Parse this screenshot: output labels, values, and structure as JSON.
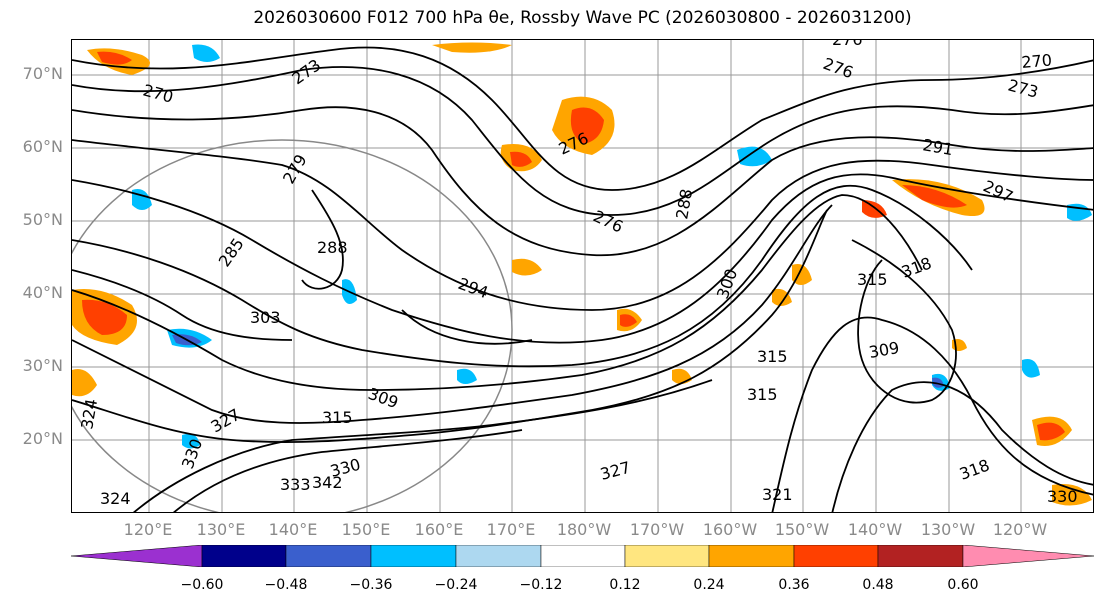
{
  "title": "2026030600 F012 700 hPa θe, Rossby Wave PC (2026030800 - 2026031200)",
  "lat_labels": [
    "70°N",
    "60°N",
    "50°N",
    "40°N",
    "30°N",
    "20°N"
  ],
  "lon_labels": [
    "120°E",
    "130°E",
    "140°E",
    "150°E",
    "160°E",
    "170°E",
    "180°W",
    "170°W",
    "160°W",
    "150°W",
    "140°W",
    "130°W",
    "120°W"
  ],
  "contour_labels": [
    "270",
    "273",
    "276",
    "279",
    "285",
    "288",
    "291",
    "294",
    "297",
    "300",
    "303",
    "309",
    "315",
    "318",
    "321",
    "324",
    "327",
    "330",
    "333",
    "342"
  ],
  "colorbar": {
    "ticks": [
      "−0.60",
      "−0.48",
      "−0.36",
      "−0.24",
      "−0.12",
      "0.12",
      "0.24",
      "0.36",
      "0.48",
      "0.60"
    ],
    "colors": [
      "#9b30d0",
      "#00008b",
      "#3a5fcd",
      "#00bfff",
      "#add8f0",
      "#ffffff",
      "#ffe680",
      "#ffa500",
      "#ff4000",
      "#b22222",
      "#ff8cb0"
    ]
  },
  "colors": {
    "contour": "#000000",
    "grid": "#8a8a8a",
    "axis_text": "#8a8a8a"
  }
}
